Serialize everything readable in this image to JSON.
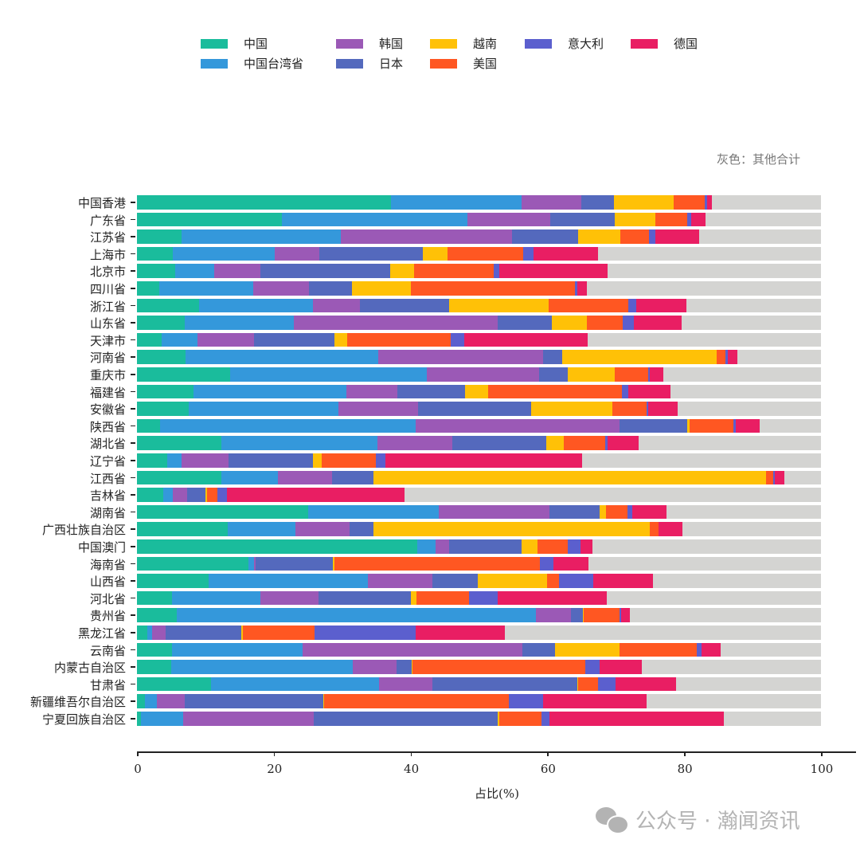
{
  "legend": [
    {
      "name": "中国",
      "color": "#1abc9c"
    },
    {
      "name": "中国台湾省",
      "color": "#3498db"
    },
    {
      "name": "韩国",
      "color": "#9b59b6"
    },
    {
      "name": "日本",
      "color": "#5469bd"
    },
    {
      "name": "越南",
      "color": "#ffc107"
    },
    {
      "name": "美国",
      "color": "#ff5722"
    },
    {
      "name": "意大利",
      "color": "#5b5fce"
    },
    {
      "name": "德国",
      "color": "#e91e63"
    }
  ],
  "note": "灰色：其他合计",
  "other_color": "#d4d4d2",
  "x_axis": {
    "label": "占比(%)",
    "ticks": [
      "0",
      "20",
      "40",
      "60",
      "80",
      "100"
    ]
  },
  "watermark": "公众号 · 瀚闻资讯",
  "chart_data": {
    "type": "bar",
    "orientation": "horizontal",
    "stacked": true,
    "title": "",
    "xlabel": "占比(%)",
    "ylabel": "",
    "xlim": [
      0,
      100
    ],
    "grid": false,
    "legend_position": "top",
    "annotation": "灰色：其他合计",
    "categories": [
      "中国香港",
      "广东省",
      "江苏省",
      "上海市",
      "北京市",
      "四川省",
      "浙江省",
      "山东省",
      "天津市",
      "河南省",
      "重庆市",
      "福建省",
      "安徽省",
      "陕西省",
      "湖北省",
      "辽宁省",
      "江西省",
      "吉林省",
      "湖南省",
      "广西壮族自治区",
      "中国澳门",
      "海南省",
      "山西省",
      "河北省",
      "贵州省",
      "黑龙江省",
      "云南省",
      "内蒙古自治区",
      "甘肃省",
      "新疆维吾尔自治区",
      "宁夏回族自治区"
    ],
    "series": [
      {
        "name": "中国",
        "values": [
          37.1,
          21.2,
          6.5,
          5.2,
          5.6,
          3.3,
          9.1,
          7.0,
          3.6,
          7.1,
          13.6,
          8.3,
          7.6,
          3.4,
          12.3,
          4.4,
          12.3,
          3.8,
          25.0,
          13.3,
          41.0,
          16.3,
          10.5,
          5.1,
          5.8,
          1.5,
          5.1,
          5.0,
          10.8,
          1.2,
          0.6
        ]
      },
      {
        "name": "中国台湾省",
        "values": [
          19.1,
          27.1,
          23.3,
          14.9,
          5.7,
          13.7,
          16.6,
          15.9,
          5.2,
          28.2,
          28.8,
          22.3,
          21.9,
          37.4,
          22.9,
          2.1,
          8.3,
          1.4,
          19.1,
          9.9,
          2.7,
          0.8,
          23.3,
          13.0,
          52.5,
          0.7,
          19.1,
          26.5,
          24.6,
          1.7,
          6.2
        ]
      },
      {
        "name": "韩国",
        "values": [
          8.8,
          12.1,
          25.0,
          6.6,
          6.8,
          8.1,
          6.9,
          29.8,
          8.3,
          24.1,
          16.4,
          7.5,
          11.6,
          29.8,
          10.9,
          6.9,
          7.9,
          2.1,
          16.2,
          7.9,
          1.9,
          0.2,
          9.4,
          8.5,
          5.2,
          2.0,
          32.1,
          6.5,
          7.8,
          4.1,
          19.1
        ]
      },
      {
        "name": "日本",
        "values": [
          4.7,
          9.5,
          9.7,
          15.1,
          18.9,
          6.3,
          13.0,
          7.9,
          11.8,
          2.8,
          4.2,
          9.9,
          16.5,
          9.9,
          13.7,
          12.3,
          6.1,
          2.7,
          7.3,
          3.5,
          10.6,
          11.3,
          6.6,
          13.5,
          1.7,
          11.1,
          4.8,
          2.2,
          21.2,
          20.3,
          26.8
        ]
      },
      {
        "name": "越南",
        "values": [
          8.8,
          5.9,
          6.2,
          3.6,
          3.5,
          8.6,
          14.6,
          5.2,
          1.8,
          22.5,
          6.8,
          3.3,
          11.9,
          0.3,
          2.6,
          1.3,
          57.4,
          0.2,
          1.0,
          40.4,
          2.4,
          0.3,
          10.2,
          0.8,
          0.1,
          0.2,
          9.4,
          0.1,
          0.1,
          0.1,
          0.3
        ]
      },
      {
        "name": "美国",
        "values": [
          4.5,
          4.7,
          4.2,
          11.1,
          11.6,
          24.0,
          11.6,
          5.2,
          15.2,
          1.3,
          5.0,
          19.6,
          5.0,
          6.4,
          6.1,
          7.9,
          1.0,
          1.6,
          3.1,
          1.2,
          4.4,
          30.0,
          1.7,
          7.7,
          5.2,
          10.5,
          11.4,
          25.3,
          2.9,
          27.0,
          6.1
        ]
      },
      {
        "name": "意大利",
        "values": [
          0.4,
          0.5,
          0.9,
          1.5,
          0.9,
          0.4,
          1.2,
          1.7,
          1.9,
          0.4,
          0.2,
          0.9,
          0.3,
          0.3,
          0.3,
          1.4,
          0.3,
          1.4,
          0.7,
          0.1,
          1.9,
          2.0,
          5.0,
          4.2,
          0.3,
          14.8,
          0.7,
          2.0,
          2.6,
          5.0,
          1.2
        ]
      },
      {
        "name": "德国",
        "values": [
          0.7,
          2.1,
          6.4,
          9.4,
          15.8,
          1.4,
          7.3,
          6.9,
          18.1,
          1.4,
          2.0,
          6.2,
          4.2,
          3.6,
          4.5,
          28.8,
          1.4,
          25.9,
          5.0,
          3.4,
          1.7,
          5.1,
          8.8,
          15.9,
          1.3,
          13.0,
          2.7,
          6.2,
          8.8,
          15.1,
          25.5
        ]
      }
    ]
  }
}
